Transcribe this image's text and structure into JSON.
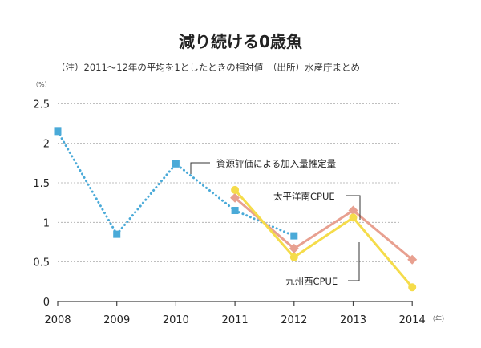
{
  "chart_data": {
    "type": "line",
    "title": "減り続ける0歳魚",
    "subtitle": "（注）2011～12年の平均を1としたときの相対値　（出所）水産庁まとめ",
    "ylabel": "（%）",
    "xlabel": "（年）",
    "ylim": [
      0,
      2.5
    ],
    "yticks": [
      "0",
      "0.5",
      "1",
      "1.5",
      "2",
      "2.5"
    ],
    "yticks_values": [
      0,
      0.5,
      1,
      1.5,
      2,
      2.5
    ],
    "categories": [
      "2008",
      "2009",
      "2010",
      "2011",
      "2012",
      "2013",
      "2014"
    ],
    "grid": true,
    "series": [
      {
        "name": "資源評価による加入量推定量",
        "color": "#4aaad8",
        "style": "dotted",
        "marker": "square",
        "values": [
          2.15,
          0.85,
          1.74,
          1.15,
          0.83,
          null,
          null
        ]
      },
      {
        "name": "太平洋南CPUE",
        "color": "#e8a090",
        "style": "solid",
        "marker": "diamond",
        "values": [
          null,
          null,
          null,
          1.31,
          0.67,
          1.15,
          0.53
        ]
      },
      {
        "name": "九州西CPUE",
        "color": "#f5dc4a",
        "style": "solid",
        "marker": "circle",
        "values": [
          null,
          null,
          null,
          1.41,
          0.56,
          1.06,
          0.18
        ]
      }
    ]
  }
}
